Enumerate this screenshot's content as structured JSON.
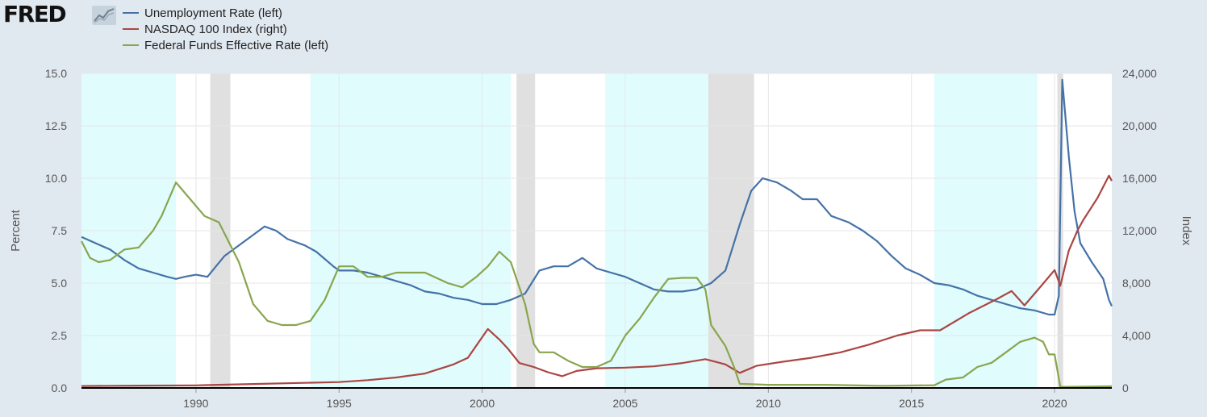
{
  "logo": {
    "text": "FRED"
  },
  "chart_data": {
    "type": "line",
    "xlim": [
      1986.0,
      2022.0
    ],
    "x_ticks": [
      1990,
      1995,
      2000,
      2005,
      2010,
      2015,
      2020
    ],
    "left_axis": {
      "label": "Percent",
      "range": [
        0,
        15
      ],
      "ticks": [
        "0.0",
        "2.5",
        "5.0",
        "7.5",
        "10.0",
        "12.5",
        "15.0"
      ]
    },
    "right_axis": {
      "label": "Index",
      "range": [
        0,
        24000
      ],
      "ticks": [
        "0",
        "4,000",
        "8,000",
        "12,000",
        "16,000",
        "20,000",
        "24,000"
      ]
    },
    "legend_placement": "top-left",
    "grid": true,
    "colors": {
      "background": "#e1e9f0",
      "plot": "#ffffff",
      "recession": "#e0e0e0",
      "highlight": "#e0fcfd",
      "grid": "#e6e6e6",
      "axis_text": "#555555"
    },
    "shaded_periods": [
      {
        "kind": "highlight",
        "start": 1986.0,
        "end": 1989.3
      },
      {
        "kind": "recession",
        "start": 1990.5,
        "end": 1991.2
      },
      {
        "kind": "highlight",
        "start": 1994.0,
        "end": 2001.0
      },
      {
        "kind": "recession",
        "start": 2001.2,
        "end": 2001.85
      },
      {
        "kind": "highlight",
        "start": 2004.3,
        "end": 2007.9
      },
      {
        "kind": "recession",
        "start": 2007.9,
        "end": 2009.5
      },
      {
        "kind": "highlight",
        "start": 2015.8,
        "end": 2019.4
      },
      {
        "kind": "recession",
        "start": 2020.1,
        "end": 2020.3
      }
    ],
    "series": [
      {
        "name": "Unemployment Rate (left)",
        "axis": "left",
        "color": "#4572a7",
        "points": [
          [
            1986.0,
            7.2
          ],
          [
            1986.5,
            6.9
          ],
          [
            1987.0,
            6.6
          ],
          [
            1987.5,
            6.1
          ],
          [
            1988.0,
            5.7
          ],
          [
            1988.5,
            5.5
          ],
          [
            1989.0,
            5.3
          ],
          [
            1989.3,
            5.2
          ],
          [
            1989.6,
            5.3
          ],
          [
            1990.0,
            5.4
          ],
          [
            1990.4,
            5.3
          ],
          [
            1990.7,
            5.8
          ],
          [
            1991.0,
            6.3
          ],
          [
            1991.5,
            6.8
          ],
          [
            1992.0,
            7.3
          ],
          [
            1992.4,
            7.7
          ],
          [
            1992.8,
            7.5
          ],
          [
            1993.2,
            7.1
          ],
          [
            1993.8,
            6.8
          ],
          [
            1994.2,
            6.5
          ],
          [
            1994.8,
            5.8
          ],
          [
            1995.0,
            5.6
          ],
          [
            1995.5,
            5.6
          ],
          [
            1996.0,
            5.5
          ],
          [
            1996.5,
            5.3
          ],
          [
            1997.0,
            5.1
          ],
          [
            1997.5,
            4.9
          ],
          [
            1998.0,
            4.6
          ],
          [
            1998.5,
            4.5
          ],
          [
            1999.0,
            4.3
          ],
          [
            1999.5,
            4.2
          ],
          [
            2000.0,
            4.0
          ],
          [
            2000.5,
            4.0
          ],
          [
            2001.0,
            4.2
          ],
          [
            2001.5,
            4.5
          ],
          [
            2002.0,
            5.6
          ],
          [
            2002.5,
            5.8
          ],
          [
            2003.0,
            5.8
          ],
          [
            2003.5,
            6.2
          ],
          [
            2004.0,
            5.7
          ],
          [
            2004.5,
            5.5
          ],
          [
            2005.0,
            5.3
          ],
          [
            2005.5,
            5.0
          ],
          [
            2006.0,
            4.7
          ],
          [
            2006.5,
            4.6
          ],
          [
            2007.0,
            4.6
          ],
          [
            2007.5,
            4.7
          ],
          [
            2008.0,
            5.0
          ],
          [
            2008.5,
            5.6
          ],
          [
            2009.0,
            7.8
          ],
          [
            2009.4,
            9.4
          ],
          [
            2009.8,
            10.0
          ],
          [
            2010.3,
            9.8
          ],
          [
            2010.8,
            9.4
          ],
          [
            2011.2,
            9.0
          ],
          [
            2011.7,
            9.0
          ],
          [
            2012.2,
            8.2
          ],
          [
            2012.8,
            7.9
          ],
          [
            2013.3,
            7.5
          ],
          [
            2013.8,
            7.0
          ],
          [
            2014.3,
            6.3
          ],
          [
            2014.8,
            5.7
          ],
          [
            2015.3,
            5.4
          ],
          [
            2015.8,
            5.0
          ],
          [
            2016.3,
            4.9
          ],
          [
            2016.8,
            4.7
          ],
          [
            2017.3,
            4.4
          ],
          [
            2017.8,
            4.2
          ],
          [
            2018.3,
            4.0
          ],
          [
            2018.8,
            3.8
          ],
          [
            2019.3,
            3.7
          ],
          [
            2019.8,
            3.5
          ],
          [
            2020.0,
            3.5
          ],
          [
            2020.15,
            4.4
          ],
          [
            2020.27,
            14.7
          ],
          [
            2020.5,
            11.0
          ],
          [
            2020.7,
            8.4
          ],
          [
            2020.9,
            6.9
          ],
          [
            2021.3,
            6.0
          ],
          [
            2021.7,
            5.2
          ],
          [
            2021.9,
            4.2
          ],
          [
            2022.0,
            3.9
          ]
        ]
      },
      {
        "name": "NASDAQ 100 Index (right)",
        "axis": "right",
        "color": "#aa4643",
        "points": [
          [
            1986.0,
            150
          ],
          [
            1988.0,
            180
          ],
          [
            1990.0,
            200
          ],
          [
            1992.0,
            300
          ],
          [
            1994.0,
            400
          ],
          [
            1995.0,
            450
          ],
          [
            1996.0,
            600
          ],
          [
            1997.0,
            800
          ],
          [
            1998.0,
            1100
          ],
          [
            1999.0,
            1800
          ],
          [
            1999.5,
            2300
          ],
          [
            2000.2,
            4500
          ],
          [
            2000.6,
            3700
          ],
          [
            2000.9,
            3000
          ],
          [
            2001.3,
            1900
          ],
          [
            2001.8,
            1600
          ],
          [
            2002.3,
            1200
          ],
          [
            2002.8,
            900
          ],
          [
            2003.3,
            1300
          ],
          [
            2004.0,
            1500
          ],
          [
            2005.0,
            1550
          ],
          [
            2006.0,
            1650
          ],
          [
            2007.0,
            1900
          ],
          [
            2007.8,
            2200
          ],
          [
            2008.5,
            1800
          ],
          [
            2009.0,
            1150
          ],
          [
            2009.6,
            1700
          ],
          [
            2010.5,
            2000
          ],
          [
            2011.5,
            2300
          ],
          [
            2012.5,
            2700
          ],
          [
            2013.5,
            3300
          ],
          [
            2014.5,
            4000
          ],
          [
            2015.3,
            4400
          ],
          [
            2016.0,
            4400
          ],
          [
            2017.0,
            5700
          ],
          [
            2018.0,
            6800
          ],
          [
            2018.5,
            7400
          ],
          [
            2018.95,
            6300
          ],
          [
            2019.5,
            7700
          ],
          [
            2020.0,
            9000
          ],
          [
            2020.2,
            7800
          ],
          [
            2020.5,
            10500
          ],
          [
            2020.8,
            12000
          ],
          [
            2021.0,
            12800
          ],
          [
            2021.5,
            14500
          ],
          [
            2021.9,
            16200
          ],
          [
            2022.0,
            15800
          ]
        ]
      },
      {
        "name": "Federal Funds Effective Rate (left)",
        "axis": "left",
        "color": "#89a54e",
        "points": [
          [
            1986.0,
            7.0
          ],
          [
            1986.3,
            6.2
          ],
          [
            1986.6,
            6.0
          ],
          [
            1987.0,
            6.1
          ],
          [
            1987.5,
            6.6
          ],
          [
            1988.0,
            6.7
          ],
          [
            1988.5,
            7.5
          ],
          [
            1988.8,
            8.2
          ],
          [
            1989.3,
            9.8
          ],
          [
            1989.8,
            9.0
          ],
          [
            1990.3,
            8.2
          ],
          [
            1990.8,
            7.9
          ],
          [
            1991.5,
            6.0
          ],
          [
            1992.0,
            4.0
          ],
          [
            1992.5,
            3.2
          ],
          [
            1993.0,
            3.0
          ],
          [
            1993.5,
            3.0
          ],
          [
            1994.0,
            3.2
          ],
          [
            1994.5,
            4.2
          ],
          [
            1995.0,
            5.8
          ],
          [
            1995.5,
            5.8
          ],
          [
            1996.0,
            5.3
          ],
          [
            1996.5,
            5.3
          ],
          [
            1997.0,
            5.5
          ],
          [
            1997.5,
            5.5
          ],
          [
            1998.0,
            5.5
          ],
          [
            1998.8,
            5.0
          ],
          [
            1999.3,
            4.8
          ],
          [
            1999.8,
            5.3
          ],
          [
            2000.2,
            5.8
          ],
          [
            2000.6,
            6.5
          ],
          [
            2001.0,
            6.0
          ],
          [
            2001.5,
            4.0
          ],
          [
            2001.8,
            2.1
          ],
          [
            2002.0,
            1.7
          ],
          [
            2002.5,
            1.7
          ],
          [
            2003.0,
            1.3
          ],
          [
            2003.5,
            1.0
          ],
          [
            2004.0,
            1.0
          ],
          [
            2004.5,
            1.3
          ],
          [
            2005.0,
            2.5
          ],
          [
            2005.5,
            3.3
          ],
          [
            2006.0,
            4.3
          ],
          [
            2006.5,
            5.2
          ],
          [
            2007.0,
            5.25
          ],
          [
            2007.5,
            5.25
          ],
          [
            2007.8,
            4.7
          ],
          [
            2008.0,
            3.0
          ],
          [
            2008.5,
            2.0
          ],
          [
            2008.8,
            1.0
          ],
          [
            2009.0,
            0.2
          ],
          [
            2010.0,
            0.15
          ],
          [
            2012.0,
            0.15
          ],
          [
            2014.0,
            0.1
          ],
          [
            2015.8,
            0.13
          ],
          [
            2016.2,
            0.4
          ],
          [
            2016.8,
            0.5
          ],
          [
            2017.3,
            1.0
          ],
          [
            2017.8,
            1.2
          ],
          [
            2018.3,
            1.7
          ],
          [
            2018.8,
            2.2
          ],
          [
            2019.3,
            2.4
          ],
          [
            2019.6,
            2.2
          ],
          [
            2019.8,
            1.6
          ],
          [
            2020.0,
            1.6
          ],
          [
            2020.2,
            0.05
          ],
          [
            2022.0,
            0.08
          ]
        ]
      }
    ]
  }
}
